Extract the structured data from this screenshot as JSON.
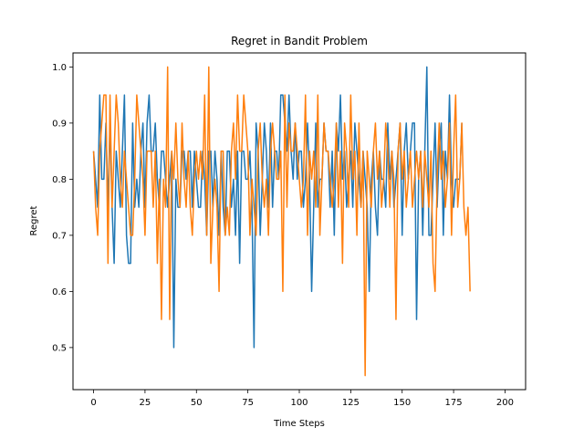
{
  "chart_data": {
    "type": "line",
    "title": "Regret in Bandit Problem",
    "xlabel": "Time Steps",
    "ylabel": "Regret",
    "xlim": [
      -10,
      210
    ],
    "ylim": [
      0.425,
      1.025
    ],
    "xticks": [
      0,
      25,
      50,
      75,
      100,
      125,
      150,
      175,
      200
    ],
    "yticks": [
      0.5,
      0.6,
      0.7,
      0.8,
      0.9,
      1.0
    ],
    "ytick_labels": [
      "0.5",
      "0.6",
      "0.7",
      "0.8",
      "0.9",
      "1.0"
    ],
    "grid": false,
    "legend": "none",
    "series": [
      {
        "color": "#1f77b4",
        "values": [
          0.85,
          0.8,
          0.75,
          0.95,
          0.8,
          0.8,
          0.9,
          0.75,
          0.9,
          0.75,
          0.65,
          0.85,
          0.8,
          0.75,
          0.85,
          0.95,
          0.7,
          0.65,
          0.65,
          0.9,
          0.75,
          0.8,
          0.75,
          0.85,
          0.9,
          0.75,
          0.9,
          0.95,
          0.85,
          0.85,
          0.9,
          0.8,
          0.75,
          0.85,
          0.85,
          0.8,
          0.75,
          0.8,
          0.85,
          0.5,
          0.8,
          0.75,
          0.75,
          0.85,
          0.85,
          0.8,
          0.85,
          0.85,
          0.75,
          0.85,
          0.8,
          0.75,
          0.75,
          0.85,
          0.8,
          0.7,
          0.85,
          0.85,
          0.75,
          0.85,
          0.8,
          0.7,
          0.85,
          0.75,
          0.7,
          0.85,
          0.85,
          0.75,
          0.8,
          0.7,
          0.85,
          0.65,
          0.85,
          0.85,
          0.8,
          0.8,
          0.85,
          0.75,
          0.5,
          0.9,
          0.85,
          0.7,
          0.8,
          0.9,
          0.85,
          0.75,
          0.9,
          0.75,
          0.85,
          0.85,
          0.8,
          0.95,
          0.95,
          0.9,
          0.85,
          0.95,
          0.85,
          0.8,
          0.9,
          0.8,
          0.85,
          0.85,
          0.75,
          0.8,
          0.9,
          0.8,
          0.6,
          0.75,
          0.9,
          0.75,
          0.8,
          0.8,
          0.9,
          0.85,
          0.85,
          0.75,
          0.85,
          0.7,
          0.9,
          0.85,
          0.95,
          0.8,
          0.85,
          0.75,
          0.8,
          0.85,
          0.75,
          0.9,
          0.85,
          0.8,
          0.75,
          0.85,
          0.8,
          0.75,
          0.6,
          0.8,
          0.85,
          0.75,
          0.7,
          0.85,
          0.8,
          0.8,
          0.75,
          0.9,
          0.8,
          0.85,
          0.75,
          0.8,
          0.85,
          0.9,
          0.7,
          0.85,
          0.9,
          0.8,
          0.85,
          0.9,
          0.9,
          0.55,
          0.8,
          0.85,
          0.7,
          0.85,
          1.0,
          0.7,
          0.7,
          0.8,
          0.9,
          0.75,
          0.85,
          0.9,
          0.7,
          0.85,
          0.8,
          0.95,
          0.8,
          0.75,
          0.8,
          0.8,
          0.8,
          0.9
        ]
      },
      {
        "color": "#ff7f0e",
        "values": [
          0.85,
          0.75,
          0.7,
          0.85,
          0.9,
          0.95,
          0.95,
          0.65,
          0.95,
          0.75,
          0.85,
          0.95,
          0.9,
          0.8,
          0.75,
          0.85,
          0.8,
          0.75,
          0.7,
          0.7,
          0.8,
          0.95,
          0.9,
          0.85,
          0.8,
          0.7,
          0.85,
          0.85,
          0.85,
          0.75,
          0.85,
          0.65,
          0.8,
          0.55,
          0.8,
          0.75,
          1.0,
          0.55,
          0.85,
          0.8,
          0.9,
          0.8,
          0.75,
          0.9,
          0.8,
          0.75,
          0.85,
          0.75,
          0.7,
          0.8,
          0.85,
          0.8,
          0.85,
          0.8,
          0.95,
          0.7,
          1.0,
          0.65,
          0.75,
          0.8,
          0.75,
          0.6,
          0.85,
          0.85,
          0.7,
          0.75,
          0.7,
          0.85,
          0.9,
          0.8,
          0.95,
          0.85,
          0.85,
          0.95,
          0.9,
          0.85,
          0.7,
          0.8,
          0.75,
          0.7,
          0.85,
          0.9,
          0.8,
          0.75,
          0.8,
          0.7,
          0.85,
          0.9,
          0.85,
          0.8,
          0.8,
          0.85,
          0.6,
          0.95,
          0.75,
          0.9,
          0.85,
          0.85,
          0.9,
          0.85,
          0.8,
          0.75,
          0.8,
          0.95,
          0.7,
          0.85,
          0.8,
          0.85,
          0.75,
          0.95,
          0.7,
          0.8,
          0.9,
          0.85,
          0.85,
          0.8,
          0.75,
          0.8,
          0.9,
          0.75,
          0.85,
          0.65,
          0.9,
          0.85,
          0.75,
          0.95,
          0.8,
          0.85,
          0.7,
          0.9,
          0.75,
          0.85,
          0.45,
          0.85,
          0.8,
          0.75,
          0.85,
          0.9,
          0.8,
          0.85,
          0.75,
          0.8,
          0.9,
          0.85,
          0.75,
          0.85,
          0.8,
          0.55,
          0.85,
          0.9,
          0.8,
          0.85,
          0.75,
          0.8,
          0.85,
          0.75,
          0.8,
          0.85,
          0.8,
          0.85,
          0.75,
          0.85,
          0.8,
          0.75,
          0.85,
          0.65,
          0.6,
          0.8,
          0.9,
          0.8,
          0.85,
          0.75,
          0.8,
          0.9,
          0.7,
          0.85,
          0.95,
          0.75,
          0.8,
          0.9,
          0.75,
          0.7,
          0.75,
          0.6
        ]
      }
    ]
  }
}
